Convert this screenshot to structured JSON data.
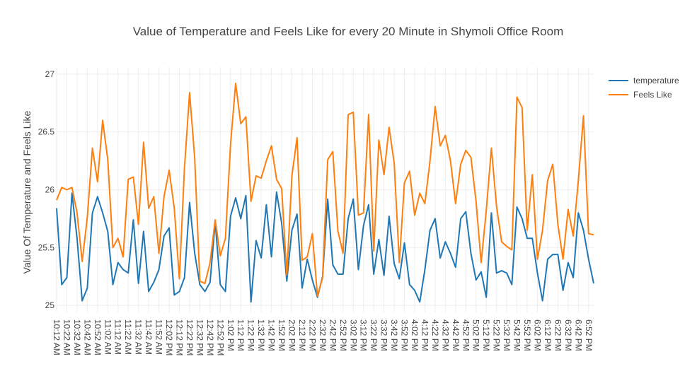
{
  "chart_data": {
    "type": "line",
    "title": "Value of Temperature and Feels Like for every 20 Minute in Shymoli Office Room",
    "ylabel": "Value Of Temperature and Feels Like",
    "xlabel": "",
    "ylim": [
      24.94,
      27.06
    ],
    "yticks": [
      25,
      25.5,
      26,
      26.5,
      27
    ],
    "ytick_labels": [
      "25",
      "25.5",
      "26",
      "26.5",
      "27"
    ],
    "grid": true,
    "legend_position": "top-right",
    "x_ticks": [
      "10:12 AM",
      "10:22 AM",
      "10:32 AM",
      "10:42 AM",
      "10:52 AM",
      "11:02 AM",
      "11:12 AM",
      "11:22 AM",
      "11:32 AM",
      "11:42 AM",
      "11:52 AM",
      "12:02 PM",
      "12:12 PM",
      "12:22 PM",
      "12:32 PM",
      "12:42 PM",
      "12:52 PM",
      "1:02 PM",
      "1:12 PM",
      "1:22 PM",
      "1:32 PM",
      "1:42 PM",
      "1:52 PM",
      "2:02 PM",
      "2:12 PM",
      "2:22 PM",
      "2:32 PM",
      "2:42 PM",
      "2:52 PM",
      "3:02 PM",
      "3:12 PM",
      "3:22 PM",
      "3:32 PM",
      "3:42 PM",
      "3:52 PM",
      "4:02 PM",
      "4:12 PM",
      "4:22 PM",
      "4:32 PM",
      "4:42 PM",
      "4:52 PM",
      "5:02 PM",
      "5:12 PM",
      "5:22 PM",
      "5:32 PM",
      "5:42 PM",
      "5:52 PM",
      "6:02 PM",
      "6:12 PM",
      "6:22 PM",
      "6:32 PM",
      "6:42 PM",
      "6:52 PM"
    ],
    "series": [
      {
        "name": "temperature",
        "color": "#1f77b4",
        "values": [
          25.84,
          25.18,
          25.24,
          25.97,
          25.58,
          25.04,
          25.15,
          25.8,
          25.94,
          25.8,
          25.64,
          25.18,
          25.37,
          25.31,
          25.28,
          25.74,
          25.19,
          25.64,
          25.12,
          25.2,
          25.31,
          25.6,
          25.67,
          25.09,
          25.12,
          25.24,
          25.89,
          25.45,
          25.18,
          25.12,
          25.2,
          25.72,
          25.18,
          25.12,
          25.77,
          25.93,
          25.75,
          25.95,
          25.03,
          25.56,
          25.41,
          25.87,
          25.42,
          25.98,
          25.71,
          25.21,
          25.65,
          25.79,
          25.15,
          25.4,
          25.22,
          25.07,
          25.25,
          25.92,
          25.35,
          25.27,
          25.27,
          25.75,
          25.92,
          25.31,
          25.69,
          25.87,
          25.27,
          25.57,
          25.26,
          25.77,
          25.36,
          25.23,
          25.54,
          25.18,
          25.13,
          25.03,
          25.31,
          25.65,
          25.75,
          25.41,
          25.55,
          25.45,
          25.33,
          25.75,
          25.81,
          25.45,
          25.22,
          25.29,
          25.07,
          25.8,
          25.28,
          25.3,
          25.28,
          25.18,
          25.85,
          25.75,
          25.58,
          25.58,
          25.28,
          25.04,
          25.4,
          25.44,
          25.44,
          25.13,
          25.37,
          25.24,
          25.8,
          25.65,
          25.4,
          25.19
        ]
      },
      {
        "name": "Feels Like",
        "color": "#ff7f0e",
        "values": [
          25.91,
          26.02,
          26.0,
          26.02,
          25.8,
          25.38,
          25.76,
          26.36,
          26.07,
          26.6,
          26.26,
          25.5,
          25.58,
          25.42,
          26.09,
          26.11,
          25.7,
          26.41,
          25.84,
          25.94,
          25.45,
          25.94,
          26.17,
          25.84,
          25.23,
          26.19,
          26.84,
          26.27,
          25.21,
          25.19,
          25.37,
          25.74,
          25.43,
          25.58,
          26.39,
          26.92,
          26.57,
          26.63,
          25.9,
          26.12,
          26.1,
          26.25,
          26.38,
          26.09,
          26.01,
          25.26,
          26.12,
          26.45,
          25.39,
          25.42,
          25.62,
          25.08,
          25.24,
          26.26,
          26.33,
          25.64,
          25.45,
          26.65,
          26.67,
          25.78,
          25.8,
          26.65,
          25.47,
          26.43,
          26.13,
          26.54,
          26.23,
          25.37,
          26.06,
          26.16,
          25.78,
          25.97,
          25.88,
          26.25,
          26.72,
          26.38,
          26.47,
          26.25,
          25.88,
          26.22,
          26.34,
          26.28,
          25.9,
          25.37,
          25.82,
          26.36,
          25.86,
          25.55,
          25.51,
          25.48,
          26.8,
          26.71,
          25.65,
          26.13,
          25.4,
          25.65,
          26.08,
          26.22,
          25.7,
          25.4,
          25.83,
          25.6,
          26.08,
          26.64,
          25.62,
          25.61
        ]
      }
    ]
  }
}
